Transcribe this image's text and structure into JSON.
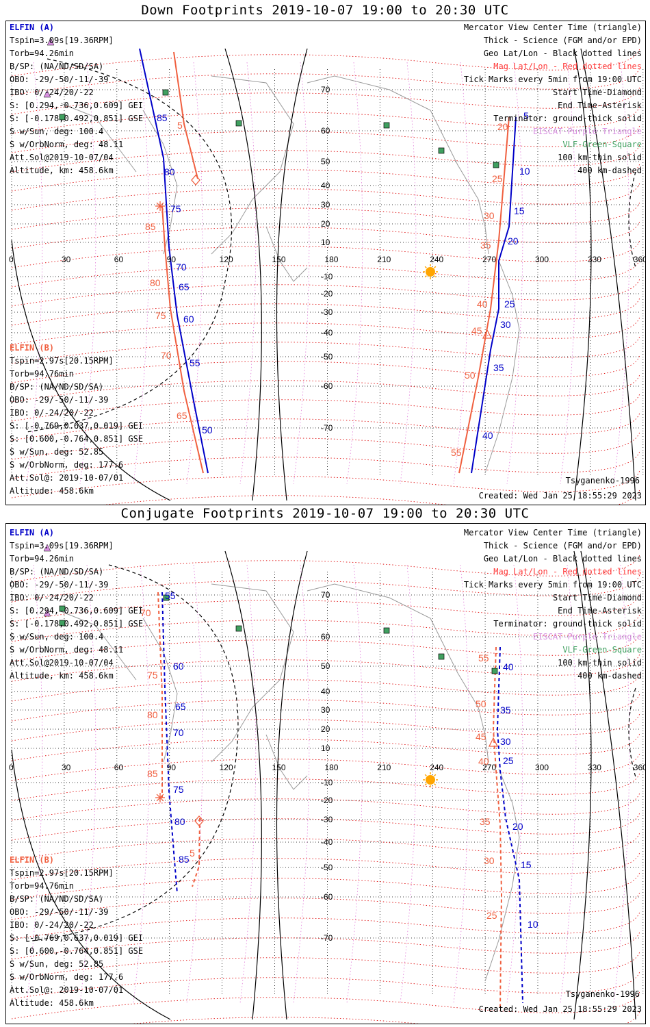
{
  "top": {
    "title": "Down Footprints 2019-10-07 19:00 to 20:30 UTC",
    "elfin_a": {
      "header": "ELFIN (A)",
      "lines": [
        "Tspin=3.09s[19.36RPM]",
        "Torb=94.26min",
        "B/SP: (NA/ND/SD/SA)",
        "OBO: -29/-50/-11/-39",
        "IBO: 0/-24/20/-22",
        "S: [0.294,-0.736,0.609] GEI",
        "S: [-0.178,0.492,0.851] GSE",
        "S w/Sun, deg: 100.4",
        "S w/OrbNorm, deg: 48.11",
        "Att.Sol@2019-10-07/04",
        "Altitude, km: 458.6km"
      ]
    },
    "elfin_b": {
      "header": "ELFIN (B)",
      "lines": [
        "Tspin=2.97s[20.15RPM]",
        "Torb=94.76min",
        "B/SP: (NA/ND/SD/SA)",
        "OBO: -29/-50/-11/-39",
        "IBO: 0/-24/20/-22",
        "S: [-0.769,0.637,0.019] GEI",
        "S: [0.600,-0.764,0.851] GSE",
        "S w/Sun, deg: 52.85",
        "S w/OrbNorm, deg: 177.6",
        "Att.Sol@: 2019-10-07/01",
        "Altitude: 458.6km"
      ]
    },
    "legend": [
      "Mercator View Center Time (triangle)",
      "Thick - Science (FGM and/or EPD)",
      "Geo Lat/Lon - Black dotted lines",
      "Mag Lat/Lon - Red dotted lines",
      "Tick Marks every 5min from 19:00 UTC",
      "Start Time-Diamond",
      "End Time-Asterisk",
      "Terminator: ground-thick solid",
      "EISCAT-Purple Triangle",
      "VLF-Green-Square",
      "100 km-thin solid",
      "400 km-dashed"
    ],
    "model": "Tsyganenko-1996",
    "created": "Created: Wed Jan 25 18:55:29 2023",
    "blue_labels_a": [
      "85",
      "80",
      "75",
      "70",
      "65",
      "60",
      "55",
      "50"
    ],
    "red_labels_b": [
      "5",
      "85",
      "80",
      "75",
      "70",
      "65"
    ],
    "blue_labels_a2": [
      "5",
      "10",
      "15",
      "20",
      "25",
      "30",
      "35",
      "40"
    ],
    "red_labels_b2": [
      "20",
      "25",
      "30",
      "35",
      "40",
      "45",
      "50",
      "55"
    ]
  },
  "bottom": {
    "title": "Conjugate Footprints 2019-10-07 19:00 to 20:30 UTC",
    "elfin_a": {
      "header": "ELFIN (A)",
      "lines": [
        "Tspin=3.09s[19.36RPM]",
        "Torb=94.26min",
        "B/SP: (NA/ND/SD/SA)",
        "OBO: -29/-50/-11/-39",
        "IBO: 0/-24/20/-22",
        "S: [0.294,-0.736,0.609] GEI",
        "S: [-0.178,0.492,0.851] GSE",
        "S w/Sun, deg: 100.4",
        "S w/OrbNorm, deg: 48.11",
        "Att.Sol@2019-10-07/04",
        "Altitude, km: 458.6km"
      ]
    },
    "elfin_b": {
      "header": "ELFIN (B)",
      "lines": [
        "Tspin=2.97s[20.15RPM]",
        "Torb=94.76min",
        "B/SP: (NA/ND/SD/SA)",
        "OBO: -29/-50/-11/-39",
        "IBO: 0/-24/20/-22",
        "S: [-0.769,0.637,0.019] GEI",
        "S: [0.600,-0.764,0.851] GSE",
        "S w/Sun, deg: 52.85",
        "S w/OrbNorm, deg: 177.6",
        "Att.Sol@: 2019-10-07/01",
        "Altitude: 458.6km"
      ]
    },
    "legend": [
      "Mercator View Center Time (triangle)",
      "Thick - Science (FGM and/or EPD)",
      "Geo Lat/Lon - Black dotted lines",
      "Mag Lat/Lon - Red dotted lines",
      "Tick Marks every 5min from 19:00 UTC",
      "Start Time-Diamond",
      "End Time-Asterisk",
      "Terminator: ground-thick solid",
      "EISCAT-Purple Triangle",
      "VLF-Green-Square",
      "100 km-thin solid",
      "400 km-dashed"
    ],
    "model": "Tsyganenko-1996",
    "created": "Created: Wed Jan 25 18:55:29 2023",
    "blue_labels_a": [
      "55",
      "60",
      "65",
      "70",
      "75",
      "80",
      "85"
    ],
    "red_labels_b": [
      "70",
      "75",
      "80",
      "85",
      "5"
    ],
    "blue_labels_a2": [
      "40",
      "35",
      "30",
      "25",
      "20",
      "15",
      "10"
    ],
    "red_labels_b2": [
      "55",
      "50",
      "45",
      "40",
      "35",
      "30",
      "25"
    ]
  },
  "lon_ticks": [
    "0",
    "30",
    "60",
    "90",
    "120",
    "150",
    "180",
    "210",
    "240",
    "270",
    "300",
    "330",
    "360"
  ],
  "lat_ticks": [
    "70",
    "60",
    "50",
    "40",
    "30",
    "20",
    "10",
    "-10",
    "-20",
    "-30",
    "-40",
    "-50",
    "-60",
    "-70"
  ],
  "colors": {
    "elfin_a": "#0000c8",
    "elfin_b": "#f06040",
    "mag_grid": "#e01010",
    "eiscat": "#d890e0",
    "vlf": "#40a060",
    "sun": "#ffa500"
  }
}
